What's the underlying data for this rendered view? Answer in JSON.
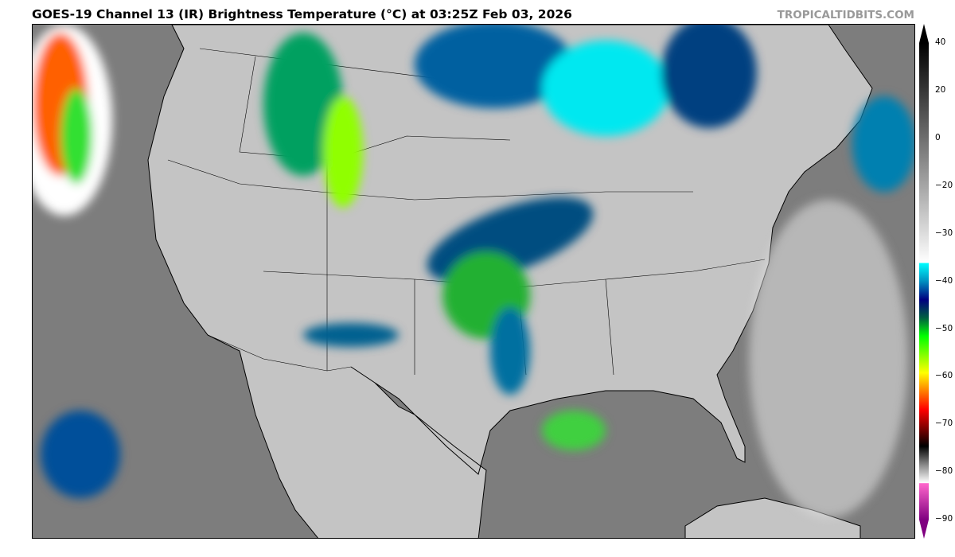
{
  "header": {
    "title": "GOES-19 Channel 13 (IR) Brightness Temperature (°C) at 03:25Z Feb 03, 2026",
    "brand": "TROPICALTIDBITS.COM"
  },
  "map": {
    "satellite": "GOES-19",
    "channel": "Channel 13 (IR)",
    "region": "Continental United States",
    "colors": {
      "ocean": "#7d7d7d",
      "land": "#c4c4c4",
      "borders": "#000000"
    }
  },
  "colorbar": {
    "units": "°C",
    "range": [
      -90,
      40
    ],
    "ticks": [
      "40",
      "20",
      "0",
      "−20",
      "−30",
      "−40",
      "−50",
      "−60",
      "−70",
      "−80",
      "−90"
    ],
    "tick_values": [
      40,
      20,
      0,
      -20,
      -30,
      -40,
      -50,
      -60,
      -70,
      -80,
      -90
    ],
    "colors": {
      "warm": "#000000",
      "cold_start": "#00ffff",
      "mid_green": "#00ff00",
      "yellow": "#ffff00",
      "red": "#ff0000",
      "coldest": "#800080"
    }
  }
}
